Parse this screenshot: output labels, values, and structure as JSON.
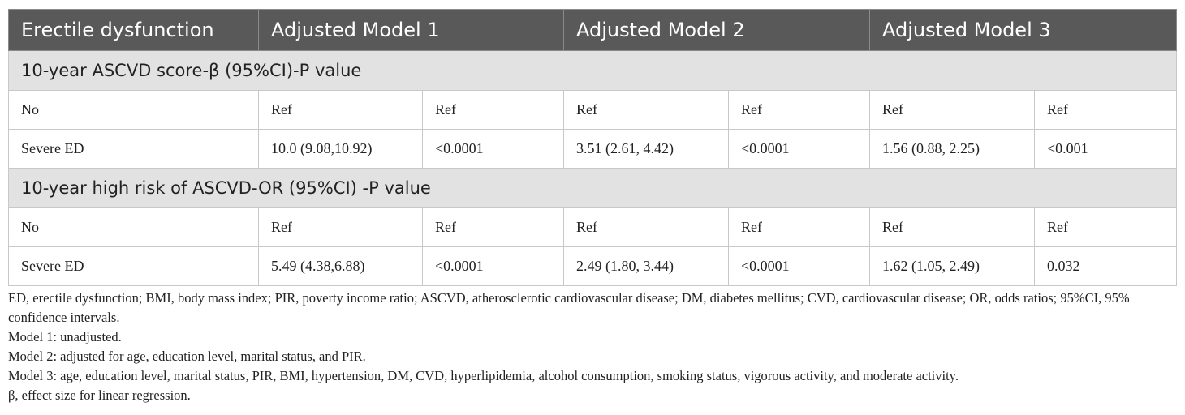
{
  "table": {
    "headers": [
      "Erectile dysfunction",
      "Adjusted Model 1",
      "Adjusted Model 2",
      "Adjusted Model 3"
    ],
    "sections": [
      {
        "title": "10-year ASCVD score-β (95%CI)-P value",
        "rows": [
          [
            "No",
            "Ref",
            "Ref",
            "Ref",
            "Ref",
            "Ref",
            "Ref"
          ],
          [
            "Severe ED",
            "10.0 (9.08,10.92)",
            "<0.0001",
            "3.51 (2.61, 4.42)",
            "<0.0001",
            "1.56 (0.88, 2.25)",
            "<0.001"
          ]
        ]
      },
      {
        "title": "10-year high risk of ASCVD-OR (95%CI) -P value",
        "rows": [
          [
            "No",
            "Ref",
            "Ref",
            "Ref",
            "Ref",
            "Ref",
            "Ref"
          ],
          [
            "Severe ED",
            "5.49 (4.38,6.88)",
            "<0.0001",
            "2.49 (1.80, 3.44)",
            "<0.0001",
            "1.62 (1.05, 2.49)",
            "0.032"
          ]
        ]
      }
    ]
  },
  "footnotes": [
    "ED, erectile dysfunction; BMI, body mass index; PIR, poverty income ratio; ASCVD, atherosclerotic cardiovascular disease; DM, diabetes mellitus; CVD, cardiovascular disease; OR, odds ratios; 95%CI, 95% confidence intervals.",
    "Model 1: unadjusted.",
    "Model 2: adjusted for age, education level, marital status, and PIR.",
    "Model 3: age, education level, marital status, PIR, BMI, hypertension, DM, CVD, hyperlipidemia, alcohol consumption, smoking status, vigorous activity, and moderate activity.",
    "β, effect size for linear regression."
  ]
}
